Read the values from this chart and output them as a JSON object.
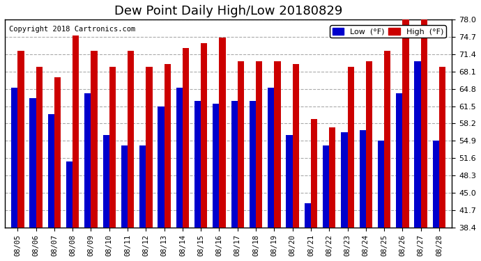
{
  "title": "Dew Point Daily High/Low 20180829",
  "copyright": "Copyright 2018 Cartronics.com",
  "dates": [
    "08/05",
    "08/06",
    "08/07",
    "08/08",
    "08/09",
    "08/10",
    "08/11",
    "08/12",
    "08/13",
    "08/14",
    "08/15",
    "08/16",
    "08/17",
    "08/18",
    "08/19",
    "08/20",
    "08/21",
    "08/22",
    "08/23",
    "08/24",
    "08/25",
    "08/26",
    "08/27",
    "08/28"
  ],
  "low": [
    65.0,
    63.0,
    60.0,
    51.0,
    64.0,
    56.0,
    54.0,
    54.0,
    61.5,
    65.0,
    62.5,
    62.0,
    62.5,
    62.5,
    65.0,
    56.0,
    43.0,
    54.0,
    56.5,
    57.0,
    55.0,
    64.0,
    70.0,
    55.0
  ],
  "high": [
    72.0,
    69.0,
    67.0,
    75.0,
    72.0,
    69.0,
    72.0,
    69.0,
    69.5,
    72.5,
    73.5,
    74.5,
    70.0,
    70.0,
    70.0,
    69.5,
    59.0,
    57.5,
    69.0,
    70.0,
    72.0,
    78.0,
    78.5,
    69.0
  ],
  "ylim": [
    38.4,
    78.0
  ],
  "yticks": [
    38.4,
    41.7,
    45.0,
    48.3,
    51.6,
    54.9,
    58.2,
    61.5,
    64.8,
    68.1,
    71.4,
    74.7,
    78.0
  ],
  "bar_width": 0.35,
  "low_color": "#0000cc",
  "high_color": "#cc0000",
  "bg_color": "#ffffff",
  "grid_color": "#aaaaaa",
  "title_fontsize": 13,
  "legend_low_label": "Low  (°F)",
  "legend_high_label": "High  (°F)"
}
